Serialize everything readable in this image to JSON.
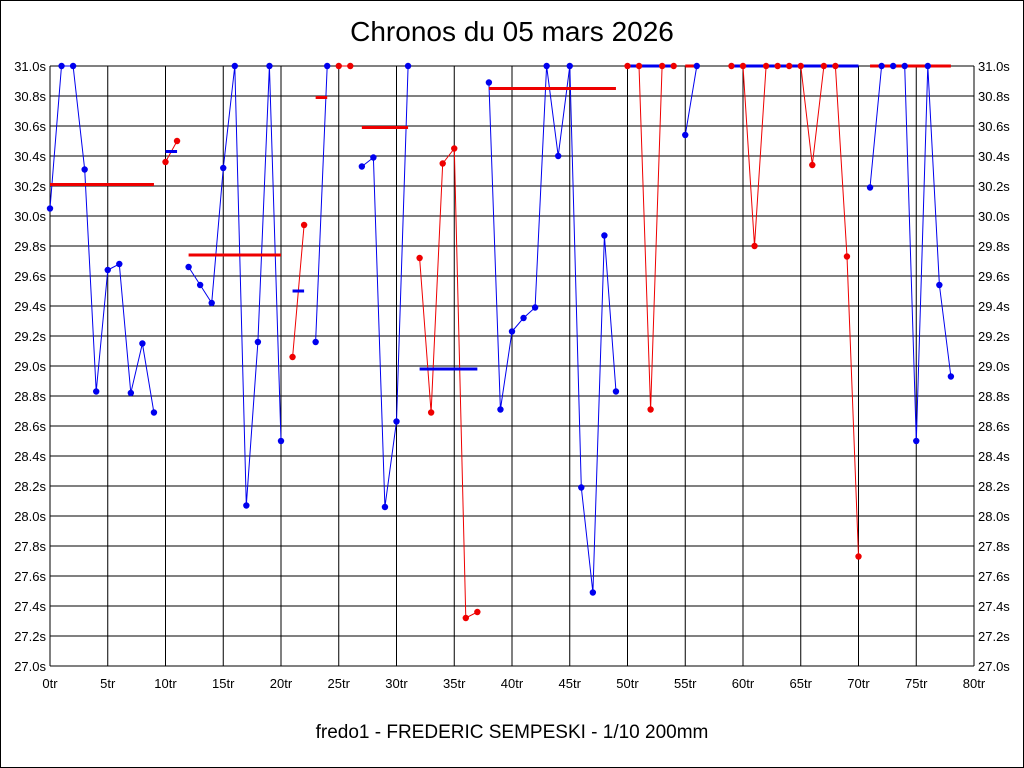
{
  "chart_data": {
    "type": "line",
    "title": "Chronos du 05 mars 2026",
    "subtitle": "fredo1 - FREDERIC SEMPESKI - 1/10 200mm",
    "xlim": [
      0,
      80
    ],
    "ylim": [
      27.0,
      31.0
    ],
    "grid": true,
    "x_tick_labels": [
      "0tr",
      "5tr",
      "10tr",
      "15tr",
      "20tr",
      "25tr",
      "30tr",
      "35tr",
      "40tr",
      "45tr",
      "50tr",
      "55tr",
      "60tr",
      "65tr",
      "70tr",
      "75tr",
      "80tr"
    ],
    "y_tick_labels": [
      "27.0s",
      "27.2s",
      "27.4s",
      "27.6s",
      "27.8s",
      "28.0s",
      "28.2s",
      "28.4s",
      "28.6s",
      "28.8s",
      "29.0s",
      "29.2s",
      "29.4s",
      "29.6s",
      "29.8s",
      "30.0s",
      "30.2s",
      "30.4s",
      "30.6s",
      "30.8s",
      "31.0s"
    ],
    "colors": {
      "blue": "#0000ee",
      "red": "#ee0000",
      "grid": "#000000"
    },
    "segments": [
      {
        "color": "blue",
        "points": [
          [
            0,
            30.05
          ],
          [
            1,
            31.0
          ],
          [
            2,
            31.0
          ],
          [
            3,
            30.31
          ],
          [
            4,
            28.83
          ],
          [
            5,
            29.64
          ],
          [
            6,
            29.68
          ],
          [
            7,
            28.82
          ],
          [
            8,
            29.15
          ],
          [
            9,
            28.69
          ]
        ],
        "mean": {
          "y": 30.21,
          "x_from": 0,
          "x_to": 9,
          "color": "red"
        }
      },
      {
        "color": "red",
        "points": [
          [
            10,
            30.36
          ],
          [
            11,
            30.5
          ]
        ],
        "mean": {
          "y": 30.43,
          "x_from": 10,
          "x_to": 11,
          "color": "blue"
        }
      },
      {
        "color": "blue",
        "points": [
          [
            12,
            29.66
          ],
          [
            13,
            29.54
          ],
          [
            14,
            29.42
          ],
          [
            15,
            30.32
          ],
          [
            16,
            31.0
          ],
          [
            17,
            28.07
          ],
          [
            18,
            29.16
          ],
          [
            19,
            31.0
          ],
          [
            20,
            28.5
          ]
        ],
        "mean": {
          "y": 29.74,
          "x_from": 12,
          "x_to": 20,
          "color": "red"
        }
      },
      {
        "color": "red",
        "points": [
          [
            21,
            29.06
          ],
          [
            22,
            29.94
          ]
        ],
        "mean": {
          "y": 29.5,
          "x_from": 21,
          "x_to": 22,
          "color": "blue"
        }
      },
      {
        "color": "blue",
        "points": [
          [
            23,
            29.16
          ],
          [
            24,
            31.0
          ]
        ],
        "mean": {
          "y": 30.79,
          "x_from": 23,
          "x_to": 24,
          "color": "red"
        }
      },
      {
        "color": "red",
        "points": [
          [
            25,
            31.0
          ],
          [
            26,
            31.0
          ]
        ]
      },
      {
        "color": "blue",
        "points": [
          [
            27,
            30.33
          ],
          [
            28,
            30.39
          ],
          [
            29,
            28.06
          ],
          [
            30,
            28.63
          ],
          [
            31,
            31.0
          ]
        ],
        "mean": {
          "y": 30.59,
          "x_from": 27,
          "x_to": 31,
          "color": "red"
        }
      },
      {
        "color": "red",
        "points": [
          [
            32,
            29.72
          ],
          [
            33,
            28.69
          ],
          [
            34,
            30.35
          ],
          [
            35,
            30.45
          ],
          [
            36,
            27.32
          ],
          [
            37,
            27.36
          ]
        ],
        "mean": {
          "y": 28.98,
          "x_from": 32,
          "x_to": 37,
          "color": "blue"
        }
      },
      {
        "color": "blue",
        "points": [
          [
            38,
            30.89
          ],
          [
            39,
            28.71
          ],
          [
            40,
            29.23
          ],
          [
            41,
            29.32
          ],
          [
            42,
            29.39
          ],
          [
            43,
            31.0
          ],
          [
            44,
            30.4
          ],
          [
            45,
            31.0
          ],
          [
            46,
            28.19
          ],
          [
            47,
            27.49
          ],
          [
            48,
            29.87
          ],
          [
            49,
            28.83
          ]
        ],
        "mean": {
          "y": 30.85,
          "x_from": 38,
          "x_to": 49,
          "color": "red"
        }
      },
      {
        "color": "red",
        "points": [
          [
            50,
            31.0
          ],
          [
            51,
            31.0
          ],
          [
            52,
            28.71
          ],
          [
            53,
            31.0
          ],
          [
            54,
            31.0
          ]
        ],
        "mean": {
          "y": 31.0,
          "x_from": 50,
          "x_to": 54,
          "color": "blue"
        }
      },
      {
        "color": "blue",
        "points": [
          [
            55,
            30.54
          ],
          [
            56,
            31.0
          ]
        ],
        "mean": {
          "y": 31.0,
          "x_from": 55,
          "x_to": 56,
          "color": "red"
        }
      },
      {
        "color": "red",
        "points": [
          [
            59,
            31.0
          ],
          [
            60,
            31.0
          ],
          [
            61,
            29.8
          ],
          [
            62,
            31.0
          ],
          [
            63,
            31.0
          ],
          [
            64,
            31.0
          ],
          [
            65,
            31.0
          ],
          [
            66,
            30.34
          ],
          [
            67,
            31.0
          ],
          [
            68,
            31.0
          ],
          [
            69,
            29.73
          ],
          [
            70,
            27.73
          ]
        ],
        "mean": {
          "y": 31.0,
          "x_from": 59,
          "x_to": 70,
          "color": "blue"
        }
      },
      {
        "color": "blue",
        "points": [
          [
            71,
            30.19
          ],
          [
            72,
            31.0
          ],
          [
            73,
            31.0
          ],
          [
            74,
            31.0
          ],
          [
            75,
            28.5
          ],
          [
            76,
            31.0
          ],
          [
            77,
            29.54
          ],
          [
            78,
            28.93
          ]
        ],
        "mean": {
          "y": 31.0,
          "x_from": 71,
          "x_to": 78,
          "color": "red"
        }
      }
    ]
  }
}
